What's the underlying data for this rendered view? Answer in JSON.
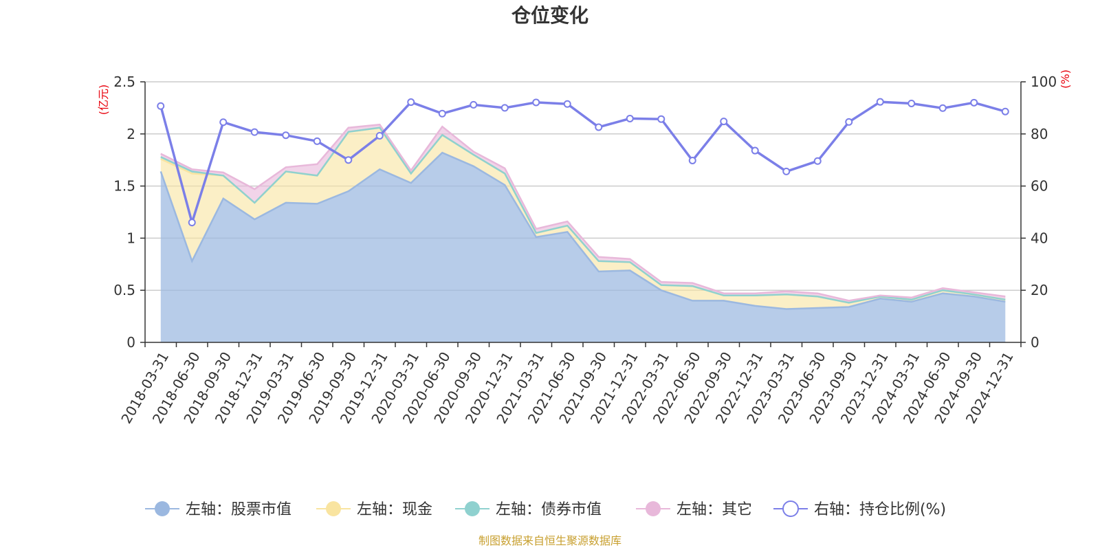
{
  "chart_data": {
    "type": "area",
    "title": "仓位变化",
    "left_axis": {
      "unit": "(亿元)",
      "ylim": [
        0,
        2.5
      ],
      "ticks": [
        "0",
        "0.5",
        "1",
        "1.5",
        "2",
        "2.5"
      ]
    },
    "right_axis": {
      "unit": "(%)",
      "ylim": [
        0,
        100
      ],
      "ticks": [
        "0",
        "20",
        "40",
        "60",
        "80",
        "100"
      ]
    },
    "grid": true,
    "legend_placement": "bottom",
    "categories": [
      "2018-03-31",
      "2018-06-30",
      "2018-09-30",
      "2018-12-31",
      "2019-03-31",
      "2019-06-30",
      "2019-09-30",
      "2019-12-31",
      "2020-03-31",
      "2020-06-30",
      "2020-09-30",
      "2020-12-31",
      "2021-03-31",
      "2021-06-30",
      "2021-09-30",
      "2021-12-31",
      "2022-03-31",
      "2022-06-30",
      "2022-09-30",
      "2022-12-31",
      "2023-03-31",
      "2023-06-30",
      "2023-09-30",
      "2023-12-31",
      "2024-03-31",
      "2024-06-30",
      "2024-09-30",
      "2024-12-31"
    ],
    "series": [
      {
        "name": "左轴：股票市值",
        "axis": "left",
        "color": "#9bb8e0",
        "values": [
          1.64,
          0.78,
          1.38,
          1.18,
          1.34,
          1.33,
          1.45,
          1.66,
          1.53,
          1.82,
          1.69,
          1.51,
          1.01,
          1.06,
          0.68,
          0.69,
          0.5,
          0.4,
          0.4,
          0.35,
          0.32,
          0.33,
          0.34,
          0.42,
          0.39,
          0.47,
          0.44,
          0.39
        ]
      },
      {
        "name": "左轴：现金",
        "axis": "left",
        "color": "#f9e4a0",
        "values": [
          0.12,
          0.84,
          0.22,
          0.16,
          0.3,
          0.27,
          0.57,
          0.4,
          0.09,
          0.17,
          0.11,
          0.11,
          0.04,
          0.06,
          0.1,
          0.08,
          0.05,
          0.14,
          0.05,
          0.1,
          0.14,
          0.11,
          0.04,
          0.02,
          0.02,
          0.03,
          0.02,
          0.02
        ]
      },
      {
        "name": "左轴：债券市值",
        "axis": "left",
        "color": "#8fd1cf",
        "values": [
          0.02,
          0.02,
          0,
          0,
          0,
          0,
          0,
          0,
          0,
          0,
          0,
          0,
          0,
          0,
          0,
          0,
          0,
          0,
          0,
          0,
          0,
          0,
          0,
          0,
          0,
          0,
          0,
          0
        ]
      },
      {
        "name": "左轴：其它",
        "axis": "left",
        "color": "#e8b8da",
        "values": [
          0.03,
          0.02,
          0.03,
          0.13,
          0.04,
          0.11,
          0.04,
          0.03,
          0.03,
          0.08,
          0.03,
          0.05,
          0.04,
          0.04,
          0.04,
          0.03,
          0.03,
          0.03,
          0.02,
          0.02,
          0.03,
          0.03,
          0.02,
          0.01,
          0.02,
          0.02,
          0.02,
          0.03
        ]
      },
      {
        "name": "右轴：持仓比例(%)",
        "axis": "right",
        "color": "#7b7fe8",
        "values": [
          90.7,
          46.0,
          84.5,
          80.7,
          79.5,
          77.2,
          70.0,
          79.3,
          92.2,
          87.8,
          91.2,
          90.0,
          92.1,
          91.5,
          82.6,
          85.9,
          85.7,
          69.8,
          84.8,
          73.6,
          65.6,
          69.6,
          84.6,
          92.3,
          91.7,
          89.9,
          92.0,
          88.6
        ]
      }
    ],
    "source_note": "制图数据来自恒生聚源数据库"
  }
}
